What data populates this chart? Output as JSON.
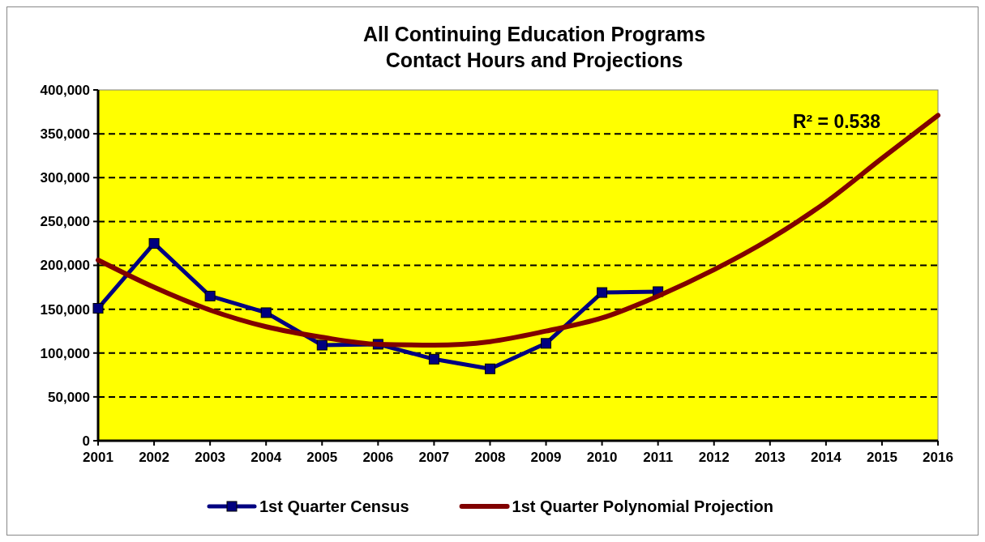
{
  "chart_data": {
    "type": "line",
    "title": "All Continuing Education Programs\nContact Hours and Projections",
    "xlim": [
      2001,
      2016
    ],
    "xticks": [
      2001,
      2002,
      2003,
      2004,
      2005,
      2006,
      2007,
      2008,
      2009,
      2010,
      2011,
      2012,
      2013,
      2014,
      2015,
      2016
    ],
    "ylim": [
      0,
      400000
    ],
    "yticks": [
      0,
      {
        "value": 50000,
        "label": "50,000"
      },
      {
        "value": 100000,
        "label": "100,000"
      },
      {
        "value": 150000,
        "label": "150,000"
      },
      {
        "value": 200000,
        "label": "200,000"
      },
      {
        "value": 250000,
        "label": "250,000"
      },
      {
        "value": 300000,
        "label": "300,000"
      },
      {
        "value": 350000,
        "label": "350,000"
      },
      {
        "value": 400000,
        "label": "400,000"
      }
    ],
    "grid": "y",
    "legend": "bottom",
    "annotations": [
      "R² = 0.538"
    ],
    "series": [
      {
        "name": "1st Quarter Census",
        "color": "#000080",
        "marker": "square",
        "x": [
          2001,
          2002,
          2003,
          2004,
          2005,
          2006,
          2007,
          2008,
          2009,
          2010,
          2011
        ],
        "values": [
          151000,
          225000,
          165000,
          146000,
          109000,
          110000,
          93000,
          82000,
          111000,
          169000,
          170000
        ]
      },
      {
        "name": "1st Quarter Polynomial Projection",
        "color": "#800000",
        "marker": "none",
        "x": [
          2001,
          2002,
          2003,
          2004,
          2005,
          2006,
          2007,
          2008,
          2009,
          2010,
          2011,
          2012,
          2013,
          2014,
          2015,
          2016
        ],
        "values": [
          206000,
          175000,
          149000,
          130000,
          118000,
          110000,
          109000,
          113000,
          125000,
          140000,
          165000,
          195000,
          230000,
          272000,
          322000,
          371000
        ]
      }
    ]
  }
}
